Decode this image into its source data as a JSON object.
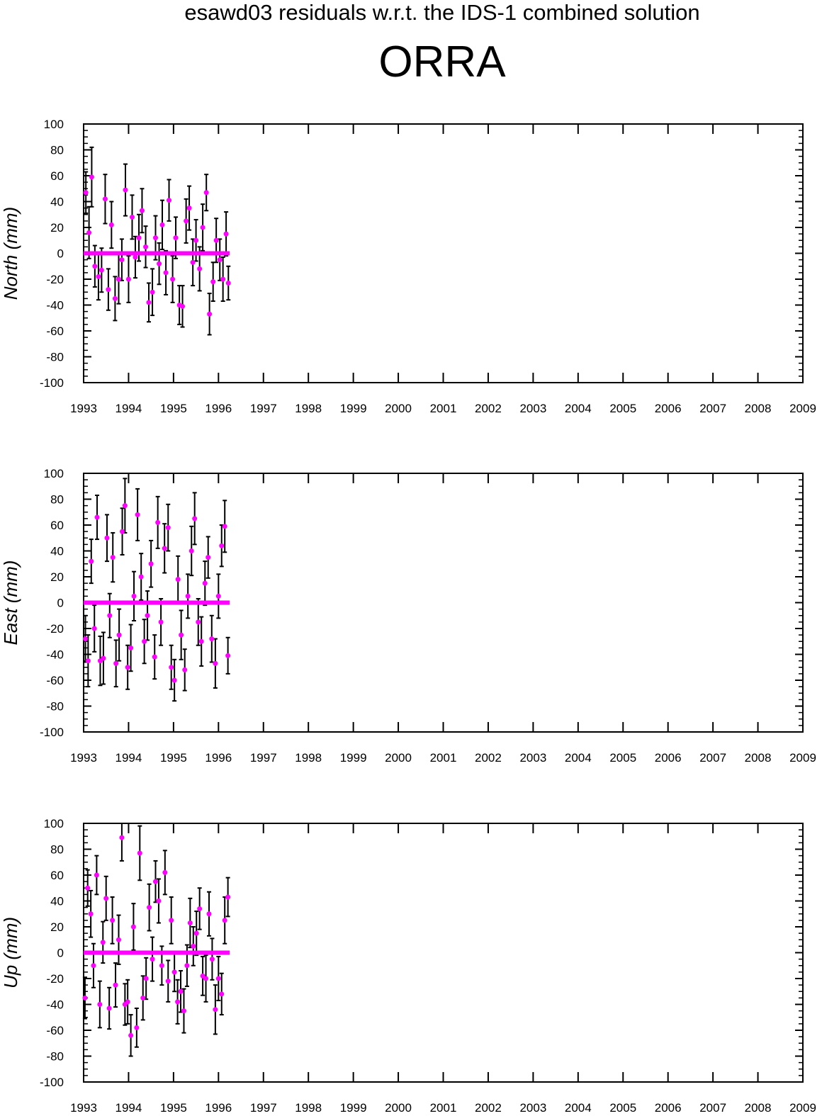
{
  "suptitle": "esawd03 residuals w.r.t. the IDS-1 combined solution",
  "station": "ORRA",
  "colors": {
    "points": "#ff00ff",
    "errorbars": "#000000",
    "zero_line": "#ff00ff"
  },
  "chart_data": [
    {
      "type": "scatter",
      "title": "",
      "xlabel": "",
      "ylabel": "North (mm)",
      "xlim": [
        1993,
        2009
      ],
      "ylim": [
        -100,
        100
      ],
      "xticks": [
        1993,
        1994,
        1995,
        1996,
        1997,
        1998,
        1999,
        2000,
        2001,
        2002,
        2003,
        2004,
        2005,
        2006,
        2007,
        2008,
        2009
      ],
      "yticks": [
        -100,
        -80,
        -60,
        -40,
        -20,
        0,
        20,
        40,
        60,
        80,
        100
      ],
      "grid": false,
      "zero_line_x": [
        1993,
        1996.25
      ],
      "x": [
        1993.05,
        1993.12,
        1993.18,
        1993.25,
        1993.33,
        1993.4,
        1993.48,
        1993.55,
        1993.62,
        1993.7,
        1993.78,
        1993.85,
        1993.93,
        1994.0,
        1994.08,
        1994.15,
        1994.23,
        1994.3,
        1994.38,
        1994.45,
        1994.53,
        1994.6,
        1994.68,
        1994.75,
        1994.83,
        1994.9,
        1994.98,
        1995.05,
        1995.13,
        1995.2,
        1995.28,
        1995.35,
        1995.43,
        1995.5,
        1995.58,
        1995.65,
        1995.73,
        1995.8,
        1995.88,
        1995.95,
        1996.03,
        1996.1,
        1996.17,
        1996.22
      ],
      "y": [
        47,
        16,
        59,
        -10,
        -18,
        -13,
        42,
        -28,
        22,
        -35,
        -20,
        -5,
        49,
        -20,
        28,
        -3,
        12,
        33,
        5,
        -38,
        -30,
        12,
        -8,
        22,
        -15,
        41,
        -20,
        12,
        -40,
        -41,
        25,
        35,
        -7,
        10,
        -12,
        20,
        47,
        -47,
        -22,
        10,
        -5,
        -20,
        15,
        -23
      ],
      "err": [
        16,
        20,
        23,
        16,
        18,
        17,
        19,
        16,
        18,
        17,
        19,
        16,
        20,
        18,
        17,
        16,
        18,
        17,
        16,
        15,
        18,
        17,
        16,
        19,
        17,
        16,
        18,
        16,
        15,
        16,
        17,
        17,
        18,
        16,
        17,
        18,
        14,
        16,
        15,
        17,
        16,
        17,
        17,
        13
      ]
    },
    {
      "type": "scatter",
      "title": "",
      "xlabel": "",
      "ylabel": "East (mm)",
      "xlim": [
        1993,
        2009
      ],
      "ylim": [
        -100,
        100
      ],
      "xticks": [
        1993,
        1994,
        1995,
        1996,
        1997,
        1998,
        1999,
        2000,
        2001,
        2002,
        2003,
        2004,
        2005,
        2006,
        2007,
        2008,
        2009
      ],
      "yticks": [
        -100,
        -80,
        -60,
        -40,
        -20,
        0,
        20,
        40,
        60,
        80,
        100
      ],
      "grid": false,
      "zero_line_x": [
        1993,
        1996.25
      ],
      "x": [
        1993.04,
        1993.1,
        1993.17,
        1993.24,
        1993.3,
        1993.37,
        1993.44,
        1993.52,
        1993.58,
        1993.65,
        1993.72,
        1993.79,
        1993.86,
        1993.92,
        1993.98,
        1994.05,
        1994.12,
        1994.2,
        1994.28,
        1994.35,
        1994.42,
        1994.5,
        1994.58,
        1994.65,
        1994.72,
        1994.8,
        1994.88,
        1994.95,
        1995.02,
        1995.1,
        1995.17,
        1995.25,
        1995.32,
        1995.4,
        1995.47,
        1995.55,
        1995.62,
        1995.7,
        1995.77,
        1995.85,
        1995.93,
        1996.0,
        1996.07,
        1996.14,
        1996.21
      ],
      "y": [
        -28,
        -45,
        32,
        -20,
        66,
        -45,
        -43,
        50,
        -10,
        35,
        -47,
        -25,
        55,
        75,
        -50,
        -35,
        5,
        68,
        20,
        -30,
        -10,
        30,
        -42,
        62,
        -15,
        42,
        58,
        -50,
        -60,
        18,
        -25,
        -52,
        5,
        40,
        65,
        -15,
        -30,
        15,
        35,
        -28,
        -47,
        5,
        44,
        59,
        -41
      ],
      "err": [
        18,
        20,
        17,
        18,
        17,
        19,
        20,
        18,
        17,
        19,
        18,
        20,
        18,
        21,
        17,
        18,
        19,
        20,
        18,
        17,
        19,
        18,
        17,
        20,
        18,
        19,
        18,
        17,
        16,
        18,
        19,
        16,
        17,
        19,
        20,
        18,
        19,
        17,
        16,
        18,
        19,
        17,
        16,
        20,
        14
      ]
    },
    {
      "type": "scatter",
      "title": "",
      "xlabel": "",
      "ylabel": "Up (mm)",
      "xlim": [
        1993,
        2009
      ],
      "ylim": [
        -100,
        100
      ],
      "xticks": [
        1993,
        1994,
        1995,
        1996,
        1997,
        1998,
        1999,
        2000,
        2001,
        2002,
        2003,
        2004,
        2005,
        2006,
        2007,
        2008,
        2009
      ],
      "yticks": [
        -100,
        -80,
        -60,
        -40,
        -20,
        0,
        20,
        40,
        60,
        80,
        100
      ],
      "grid": false,
      "zero_line_x": [
        1993,
        1996.25
      ],
      "x": [
        1993.03,
        1993.09,
        1993.16,
        1993.22,
        1993.29,
        1993.36,
        1993.43,
        1993.5,
        1993.57,
        1993.64,
        1993.71,
        1993.78,
        1993.85,
        1993.92,
        1993.98,
        1994.05,
        1994.11,
        1994.18,
        1994.25,
        1994.32,
        1994.39,
        1994.46,
        1994.53,
        1994.6,
        1994.67,
        1994.74,
        1994.81,
        1994.88,
        1994.95,
        1995.02,
        1995.09,
        1995.16,
        1995.23,
        1995.3,
        1995.37,
        1995.44,
        1995.51,
        1995.58,
        1995.65,
        1995.72,
        1995.79,
        1995.86,
        1995.93,
        1996.0,
        1996.07,
        1996.14,
        1996.21
      ],
      "y": [
        -35,
        50,
        30,
        -10,
        60,
        -40,
        8,
        42,
        -43,
        25,
        -25,
        10,
        89,
        -40,
        -38,
        -64,
        20,
        -58,
        77,
        -35,
        -20,
        35,
        -5,
        55,
        40,
        -10,
        62,
        -22,
        25,
        -15,
        -38,
        -30,
        -45,
        -10,
        23,
        5,
        15,
        34,
        -18,
        -20,
        30,
        -5,
        -44,
        -20,
        -32,
        25,
        43
      ],
      "err": [
        16,
        14,
        18,
        17,
        15,
        18,
        16,
        17,
        16,
        18,
        17,
        19,
        18,
        16,
        17,
        16,
        18,
        15,
        21,
        17,
        16,
        18,
        17,
        16,
        17,
        15,
        17,
        16,
        18,
        15,
        17,
        16,
        17,
        16,
        19,
        15,
        17,
        16,
        15,
        18,
        17,
        16,
        19,
        17,
        16,
        18,
        15
      ]
    }
  ]
}
